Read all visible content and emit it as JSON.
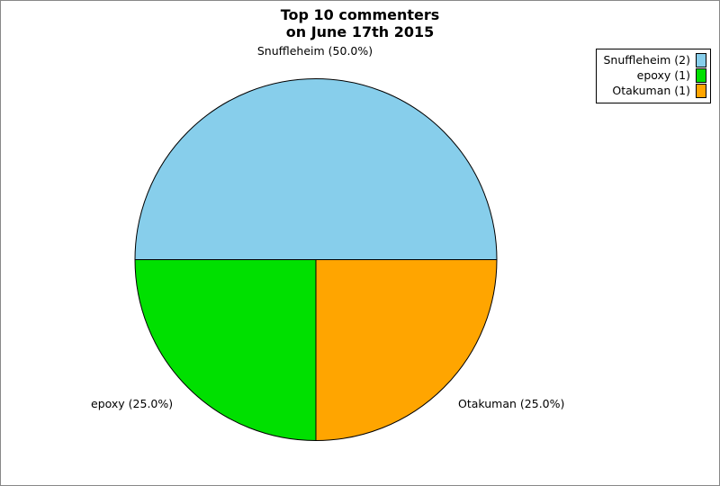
{
  "chart_data": {
    "type": "pie",
    "title_lines": [
      "Top 10 commenters",
      "on June 17th 2015"
    ],
    "title": "Top 10 commenters on June 17th 2015",
    "start_angle_deg": 0,
    "direction": "counterclockwise",
    "legend_position": "top-right",
    "outline_color": "#000000",
    "frame_color": "#888888",
    "slices": [
      {
        "name": "Snuffleheim",
        "value": 2,
        "percent": 50.0,
        "color": "#87CEEB",
        "label": "Snuffleheim (50.0%)",
        "legend_label": "Snuffleheim (2)"
      },
      {
        "name": "epoxy",
        "value": 1,
        "percent": 25.0,
        "color": "#00E000",
        "label": "epoxy (25.0%)",
        "legend_label": "epoxy (1)"
      },
      {
        "name": "Otakuman",
        "value": 1,
        "percent": 25.0,
        "color": "#FFA500",
        "label": "Otakuman (25.0%)",
        "legend_label": "Otakuman (1)"
      }
    ]
  }
}
